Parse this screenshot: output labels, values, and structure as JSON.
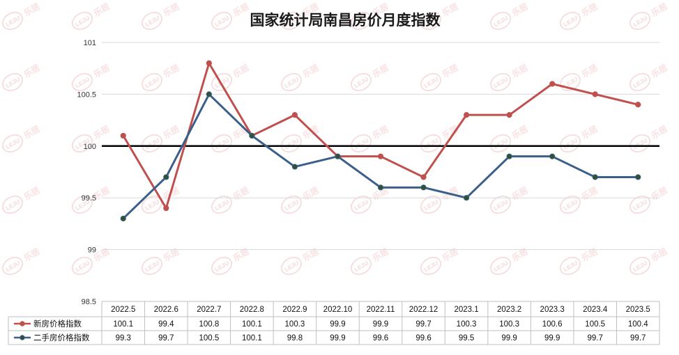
{
  "chart_data": {
    "type": "line",
    "title": "国家统计局南昌房价月度指数",
    "categories": [
      "2022.5",
      "2022.6",
      "2022.7",
      "2022.8",
      "2022.9",
      "2022.10",
      "2022.11",
      "2022.12",
      "2023.1",
      "2023.2",
      "2023.3",
      "2023.4",
      "2023.5"
    ],
    "series": [
      {
        "name": "新房价格指数",
        "color": "#c0504d",
        "marker": "#c0504d",
        "values": [
          100.1,
          99.4,
          100.8,
          100.1,
          100.3,
          99.9,
          99.9,
          99.7,
          100.3,
          100.3,
          100.6,
          100.5,
          100.4
        ]
      },
      {
        "name": "二手房价格指数",
        "color": "#3a5f8a",
        "marker": "#2f5233",
        "values": [
          99.3,
          99.7,
          100.5,
          100.1,
          99.8,
          99.9,
          99.6,
          99.6,
          99.5,
          99.9,
          99.9,
          99.7,
          99.7
        ]
      }
    ],
    "ylim": [
      98.5,
      101
    ],
    "yticks": [
      "101",
      "100.5",
      "100",
      "99.5",
      "99",
      "98.5"
    ],
    "reference_line": 100,
    "grid": true,
    "legend": "data-table"
  },
  "watermark": {
    "text": "乐居",
    "logo": "LEJU"
  }
}
